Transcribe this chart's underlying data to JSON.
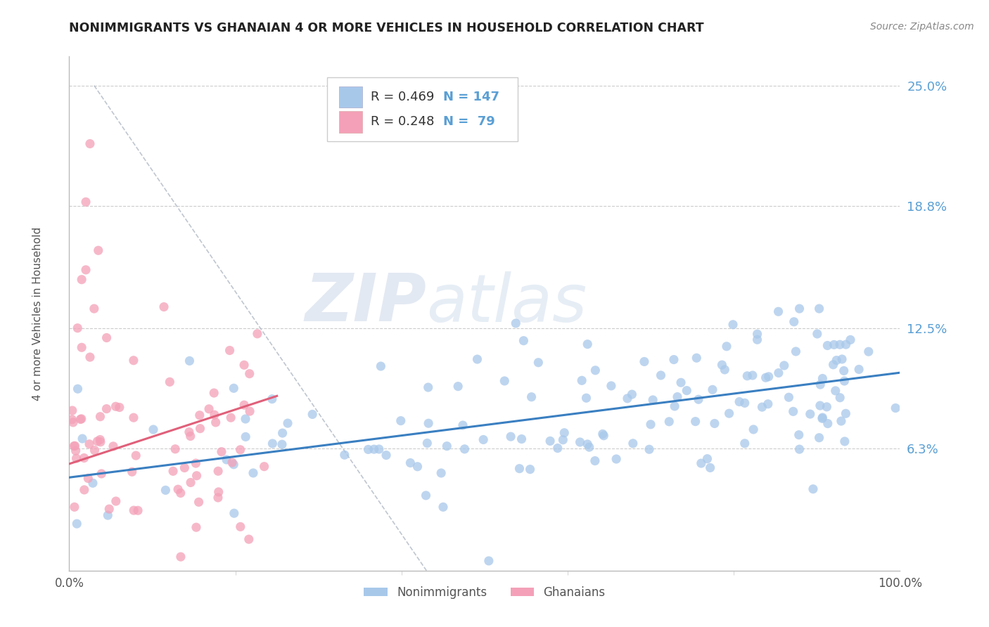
{
  "title": "NONIMMIGRANTS VS GHANAIAN 4 OR MORE VEHICLES IN HOUSEHOLD CORRELATION CHART",
  "source_text": "Source: ZipAtlas.com",
  "ylabel": "4 or more Vehicles in Household",
  "xlim": [
    0.0,
    100.0
  ],
  "ylim": [
    0.0,
    26.5
  ],
  "ytick_vals": [
    6.3,
    12.5,
    18.8,
    25.0
  ],
  "ytick_labels": [
    "6.3%",
    "12.5%",
    "18.8%",
    "25.0%"
  ],
  "xtick_vals": [
    0.0,
    100.0
  ],
  "xtick_labels": [
    "0.0%",
    "100.0%"
  ],
  "nonimm_color": "#a8c8ea",
  "ghan_color": "#f4a0b8",
  "nonimm_line_color": "#3a7fc1",
  "ghan_line_color": "#e0607a",
  "legend_r1": "0.469",
  "legend_n1": "147",
  "legend_r2": "0.248",
  "legend_n2": " 79",
  "watermark_zip": "ZIP",
  "watermark_atlas": "atlas",
  "background_color": "#ffffff",
  "grid_color": "#cccccc",
  "title_color": "#222222",
  "axis_label_color": "#555555",
  "right_tick_color": "#5a9fd4",
  "nonimm_line_x": [
    0.0,
    100.0
  ],
  "nonimm_line_y": [
    4.8,
    10.2
  ],
  "ghan_line_x": [
    0.0,
    25.0
  ],
  "ghan_line_y": [
    5.5,
    9.0
  ],
  "diag_line_x": [
    3.0,
    43.0
  ],
  "diag_line_y": [
    25.0,
    0.0
  ]
}
